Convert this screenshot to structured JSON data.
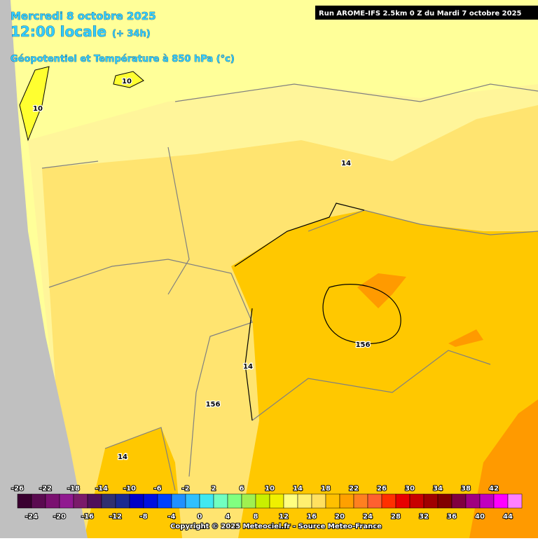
{
  "header": {
    "date": "Mercredi 8 octobre 2025",
    "time": "12:00 locale",
    "lead": "(+ 34h)",
    "field": "Géopotentiel et Température à 850 hPa (°c)",
    "run": "Run AROME-IFS 2.5km 0 Z du Mardi 7 octobre 2025"
  },
  "map_labels": [
    "10",
    "10",
    "14",
    "156",
    "14",
    "156",
    "14"
  ],
  "legend": {
    "items": [
      {
        "value": -26,
        "color": "#3a0030"
      },
      {
        "value": -24,
        "color": "#5a0a50"
      },
      {
        "value": -22,
        "color": "#7a1070"
      },
      {
        "value": -20,
        "color": "#901890"
      },
      {
        "value": -18,
        "color": "#7a1a6a"
      },
      {
        "value": -16,
        "color": "#50105a"
      },
      {
        "value": -14,
        "color": "#303070"
      },
      {
        "value": -12,
        "color": "#1a2a90"
      },
      {
        "value": -10,
        "color": "#0000c8"
      },
      {
        "value": -8,
        "color": "#0010e0"
      },
      {
        "value": -6,
        "color": "#0040ff"
      },
      {
        "value": -4,
        "color": "#2090ff"
      },
      {
        "value": -2,
        "color": "#30c0ff"
      },
      {
        "value": 0,
        "color": "#40e8f0"
      },
      {
        "value": 2,
        "color": "#70ffc0"
      },
      {
        "value": 4,
        "color": "#80ff80"
      },
      {
        "value": 6,
        "color": "#a0f050"
      },
      {
        "value": 8,
        "color": "#c8f000"
      },
      {
        "value": 10,
        "color": "#f0f000"
      },
      {
        "value": 12,
        "color": "#ffff80"
      },
      {
        "value": 14,
        "color": "#fff070"
      },
      {
        "value": 16,
        "color": "#ffe060"
      },
      {
        "value": 18,
        "color": "#ffc000"
      },
      {
        "value": 20,
        "color": "#ffa000"
      },
      {
        "value": 22,
        "color": "#ff8020"
      },
      {
        "value": 24,
        "color": "#ff6030"
      },
      {
        "value": 26,
        "color": "#ff3000"
      },
      {
        "value": 28,
        "color": "#e80000"
      },
      {
        "value": 30,
        "color": "#c80000"
      },
      {
        "value": 32,
        "color": "#a00000"
      },
      {
        "value": 34,
        "color": "#800000"
      },
      {
        "value": 36,
        "color": "#800040"
      },
      {
        "value": 38,
        "color": "#a00080"
      },
      {
        "value": 40,
        "color": "#c000c0"
      },
      {
        "value": 42,
        "color": "#ff00ff"
      },
      {
        "value": 44,
        "color": "#ff80ff"
      }
    ]
  },
  "footer": {
    "copyright": "Copyright © 2025 Meteociel.fr - Source Meteo-France"
  }
}
